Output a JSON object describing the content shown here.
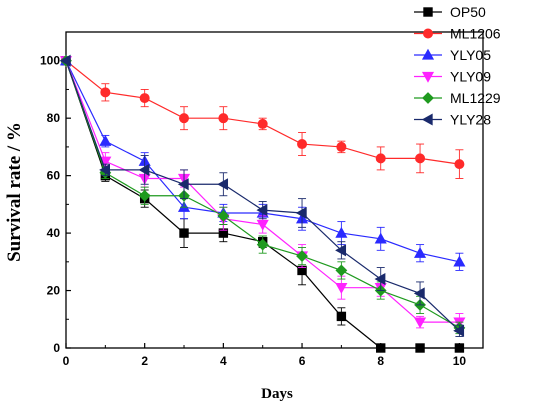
{
  "chart_data": {
    "type": "line",
    "xlabel": "Days",
    "ylabel": "Survival rate / %",
    "xlim": [
      0,
      10.6
    ],
    "ylim": [
      0,
      110
    ],
    "xticks": [
      0,
      2,
      4,
      6,
      8,
      10
    ],
    "yticks": [
      0,
      20,
      40,
      60,
      80,
      100
    ],
    "legend_position": "top-right outside plot",
    "series": [
      {
        "name": "OP50",
        "color": "#000000",
        "marker": "square",
        "x": [
          0,
          1,
          2,
          3,
          4,
          5,
          6,
          7,
          8,
          9,
          10
        ],
        "y": [
          100,
          60,
          52,
          40,
          40,
          37,
          27,
          11,
          0,
          0,
          0
        ],
        "err": [
          0,
          2,
          3,
          5,
          3,
          2,
          5,
          3,
          0,
          0,
          0
        ]
      },
      {
        "name": "ML1206",
        "color": "#ff2a2a",
        "marker": "circle",
        "x": [
          0,
          1,
          2,
          3,
          4,
          5,
          6,
          7,
          8,
          9,
          10
        ],
        "y": [
          100,
          89,
          87,
          80,
          80,
          78,
          71,
          70,
          66,
          66,
          64
        ],
        "err": [
          0,
          3,
          3,
          4,
          4,
          2,
          4,
          2,
          4,
          5,
          5
        ]
      },
      {
        "name": "YLY05",
        "color": "#2a2aff",
        "marker": "triangle-up",
        "x": [
          0,
          1,
          2,
          3,
          4,
          5,
          6,
          7,
          8,
          9,
          10
        ],
        "y": [
          100,
          72,
          65,
          49,
          47,
          47,
          45,
          40,
          38,
          33,
          30
        ],
        "err": [
          0,
          2,
          3,
          4,
          3,
          3,
          4,
          4,
          4,
          3,
          3
        ]
      },
      {
        "name": "YLY09",
        "color": "#ff22ff",
        "marker": "triangle-down",
        "x": [
          0,
          1,
          2,
          3,
          4,
          5,
          6,
          7,
          8,
          9,
          10
        ],
        "y": [
          100,
          65,
          59,
          59,
          45,
          43,
          32,
          21,
          21,
          9,
          9
        ],
        "err": [
          0,
          3,
          3,
          3,
          4,
          3,
          4,
          4,
          3,
          2,
          3
        ]
      },
      {
        "name": "ML1229",
        "color": "#1f9a1f",
        "marker": "diamond",
        "x": [
          0,
          1,
          2,
          3,
          4,
          5,
          6,
          7,
          8,
          9,
          10
        ],
        "y": [
          100,
          61,
          53,
          53,
          46,
          36,
          32,
          27,
          20,
          15,
          7
        ],
        "err": [
          0,
          2,
          3,
          4,
          3,
          3,
          3,
          3,
          3,
          3,
          2
        ]
      },
      {
        "name": "YLY28",
        "color": "#1a2a6c",
        "marker": "triangle-left",
        "x": [
          0,
          1,
          2,
          3,
          4,
          5,
          6,
          7,
          8,
          9,
          10
        ],
        "y": [
          100,
          62,
          62,
          57,
          57,
          48,
          47,
          34,
          24,
          19,
          6
        ],
        "err": [
          0,
          2,
          5,
          5,
          4,
          3,
          5,
          3,
          4,
          4,
          2
        ]
      }
    ]
  }
}
